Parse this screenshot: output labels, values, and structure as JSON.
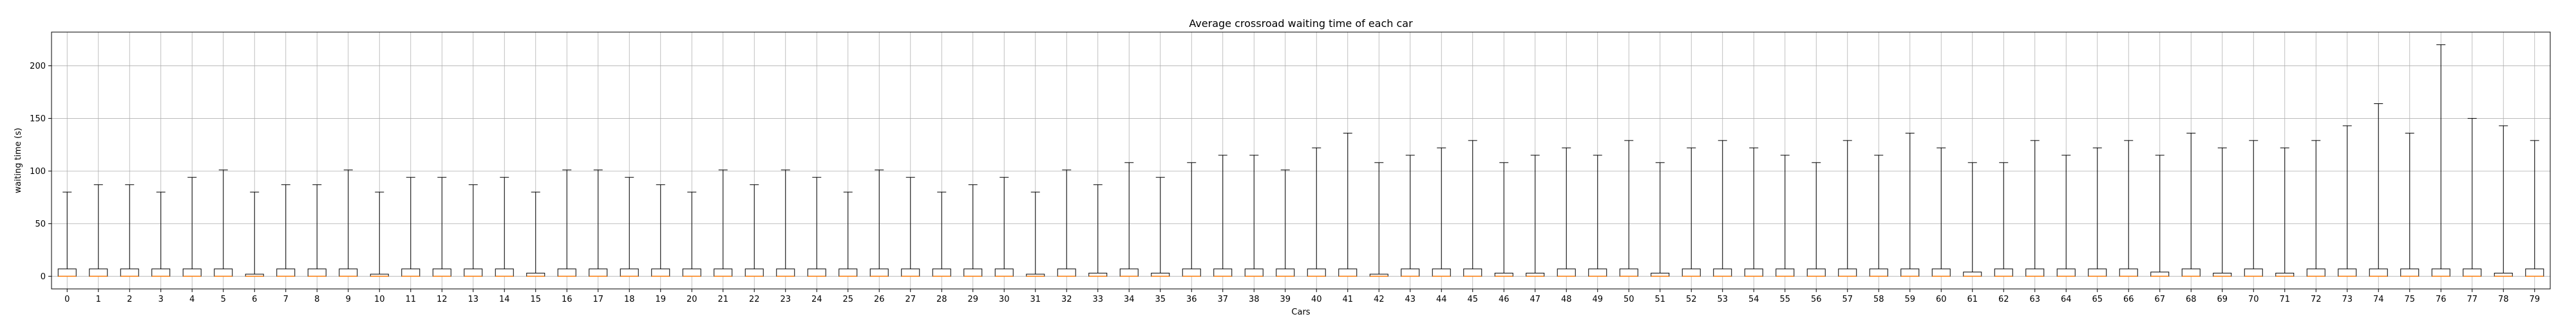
{
  "chart_data": {
    "type": "boxplot",
    "title": "Average crossroad waiting time of each car",
    "xlabel": "Cars",
    "ylabel": "waiting time (s)",
    "ylim": [
      -12,
      232
    ],
    "yticks": [
      0,
      50,
      100,
      150,
      200
    ],
    "grid": true,
    "colors": {
      "box": "#000000",
      "median": "#ff7f0e",
      "whisker": "#000000",
      "grid": "#b0b0b0",
      "axes": "#000000"
    },
    "categories": [
      "0",
      "1",
      "2",
      "3",
      "4",
      "5",
      "6",
      "7",
      "8",
      "9",
      "10",
      "11",
      "12",
      "13",
      "14",
      "15",
      "16",
      "17",
      "18",
      "19",
      "20",
      "21",
      "22",
      "23",
      "24",
      "25",
      "26",
      "27",
      "28",
      "29",
      "30",
      "31",
      "32",
      "33",
      "34",
      "35",
      "36",
      "37",
      "38",
      "39",
      "40",
      "41",
      "42",
      "43",
      "44",
      "45",
      "46",
      "47",
      "48",
      "49",
      "50",
      "51",
      "52",
      "53",
      "54",
      "55",
      "56",
      "57",
      "58",
      "59",
      "60",
      "61",
      "62",
      "63",
      "64",
      "65",
      "66",
      "67",
      "68",
      "69",
      "70",
      "71",
      "72",
      "73",
      "74",
      "75",
      "76",
      "77",
      "78",
      "79"
    ],
    "whisker_low": [
      0,
      0,
      0,
      0,
      0,
      0,
      0,
      0,
      0,
      0,
      0,
      0,
      0,
      0,
      0,
      0,
      0,
      0,
      0,
      0,
      0,
      0,
      0,
      0,
      0,
      0,
      0,
      0,
      0,
      0,
      0,
      0,
      0,
      0,
      0,
      0,
      0,
      0,
      0,
      0,
      0,
      0,
      0,
      0,
      0,
      0,
      0,
      0,
      0,
      0,
      0,
      0,
      0,
      0,
      0,
      0,
      0,
      0,
      0,
      0,
      0,
      0,
      0,
      0,
      0,
      0,
      0,
      0,
      0,
      0,
      0,
      0,
      0,
      0,
      0,
      0,
      0,
      0,
      0,
      0
    ],
    "q1": [
      0,
      0,
      0,
      0,
      0,
      0,
      0,
      0,
      0,
      0,
      0,
      0,
      0,
      0,
      0,
      0,
      0,
      0,
      0,
      0,
      0,
      0,
      0,
      0,
      0,
      0,
      0,
      0,
      0,
      0,
      0,
      0,
      0,
      0,
      0,
      0,
      0,
      0,
      0,
      0,
      0,
      0,
      0,
      0,
      0,
      0,
      0,
      0,
      0,
      0,
      0,
      0,
      0,
      0,
      0,
      0,
      0,
      0,
      0,
      0,
      0,
      0,
      0,
      0,
      0,
      0,
      0,
      0,
      0,
      0,
      0,
      0,
      0,
      0,
      0,
      0,
      0,
      0,
      0,
      0
    ],
    "median": [
      0,
      0,
      0,
      0,
      0,
      0,
      0,
      0,
      0,
      0,
      0,
      0,
      0,
      0,
      0,
      0,
      0,
      0,
      0,
      0,
      0,
      0,
      0,
      0,
      0,
      0,
      0,
      0,
      0,
      0,
      0,
      0,
      0,
      0,
      0,
      0,
      0,
      0,
      0,
      0,
      0,
      0,
      0,
      0,
      0,
      0,
      0,
      0,
      0,
      0,
      0,
      0,
      0,
      0,
      0,
      0,
      0,
      0,
      0,
      0,
      0,
      0,
      0,
      0,
      0,
      0,
      0,
      0,
      0,
      0,
      0,
      0,
      0,
      0,
      0,
      0,
      0,
      0,
      0,
      0
    ],
    "q3": [
      7,
      7,
      7,
      7,
      7,
      7,
      2,
      7,
      7,
      7,
      2,
      7,
      7,
      7,
      7,
      3,
      7,
      7,
      7,
      7,
      7,
      7,
      7,
      7,
      7,
      7,
      7,
      7,
      7,
      7,
      7,
      2,
      7,
      3,
      7,
      3,
      7,
      7,
      7,
      7,
      7,
      7,
      2,
      7,
      7,
      7,
      3,
      3,
      7,
      7,
      7,
      3,
      7,
      7,
      7,
      7,
      7,
      7,
      7,
      7,
      7,
      4,
      7,
      7,
      7,
      7,
      7,
      4,
      7,
      3,
      7,
      3,
      7,
      7,
      7,
      7,
      7,
      7,
      3,
      7
    ],
    "whisker_high": [
      80,
      87,
      87,
      80,
      94,
      101,
      80,
      87,
      87,
      101,
      80,
      94,
      94,
      87,
      94,
      80,
      101,
      101,
      94,
      87,
      80,
      101,
      87,
      101,
      94,
      80,
      101,
      94,
      80,
      87,
      94,
      80,
      101,
      87,
      108,
      94,
      108,
      115,
      115,
      101,
      122,
      136,
      108,
      115,
      122,
      129,
      108,
      115,
      122,
      115,
      129,
      108,
      122,
      129,
      122,
      115,
      108,
      129,
      115,
      136,
      122,
      108,
      108,
      129,
      115,
      122,
      129,
      115,
      136,
      122,
      129,
      122,
      129,
      143,
      164,
      136,
      220,
      150,
      143,
      129
    ]
  }
}
